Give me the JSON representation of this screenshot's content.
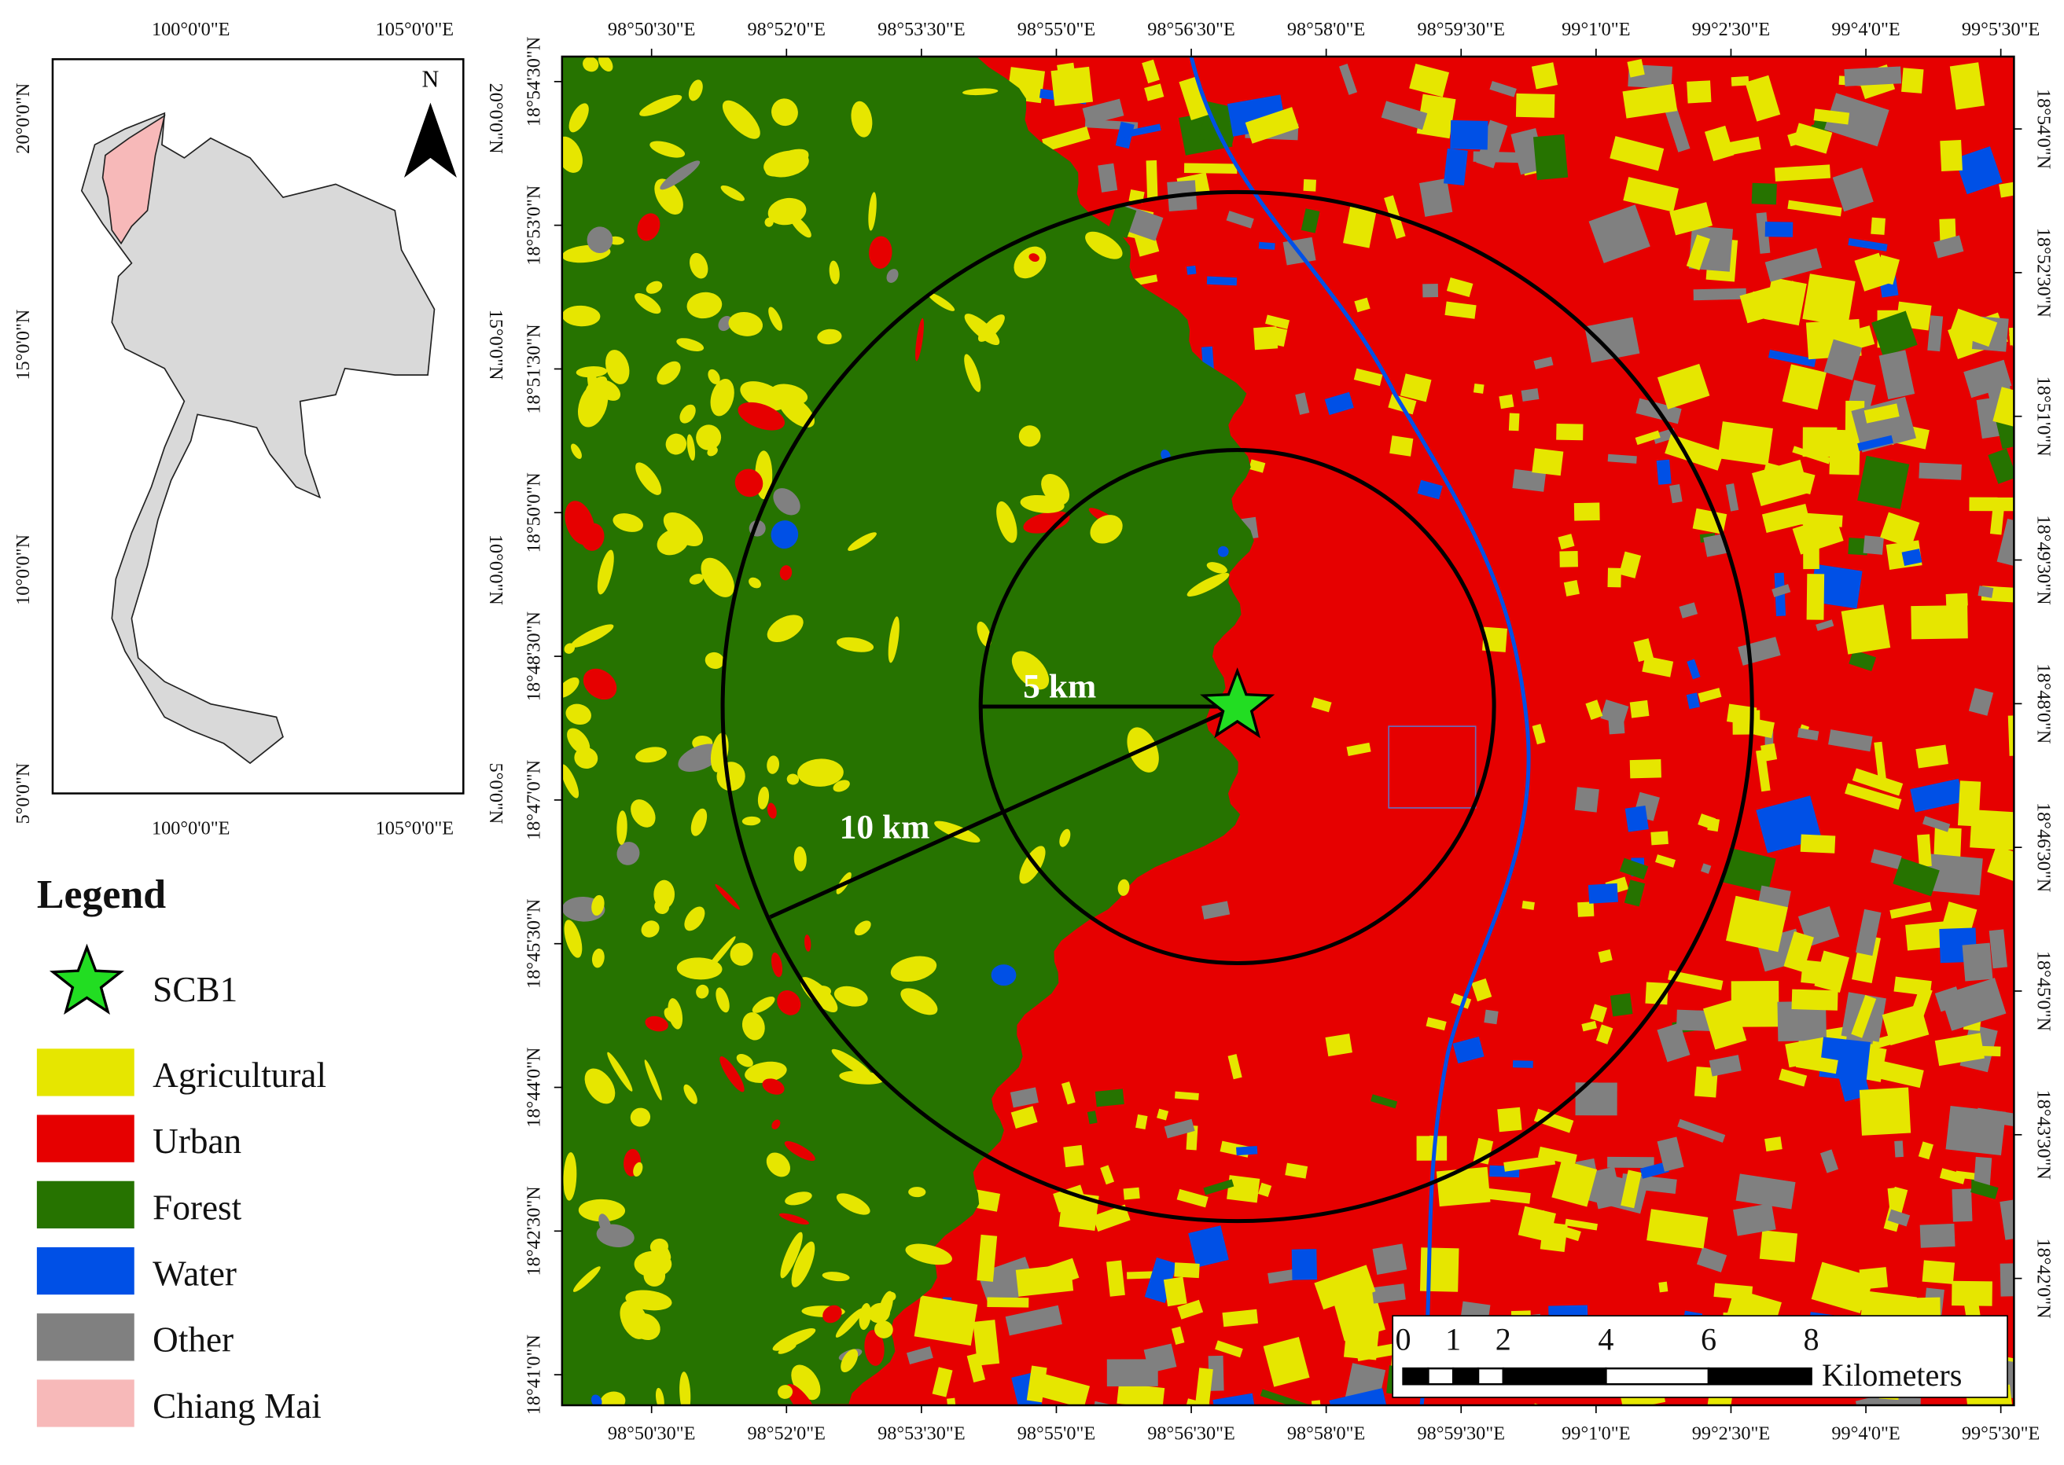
{
  "inset": {
    "top_labels": [
      "100°0'0\"E",
      "105°0'0\"E"
    ],
    "bottom_labels": [
      "100°0'0\"E",
      "105°0'0\"E"
    ],
    "left_labels": [
      "20°0'0\"N",
      "15°0'0\"N",
      "10°0'0\"N",
      "5°0'0\"N"
    ],
    "right_labels": [
      "20°0'0\"N",
      "15°0'0\"N",
      "10°0'0\"N",
      "5°0'0\"N"
    ],
    "north": "N"
  },
  "main": {
    "top_labels": [
      "98°50'30\"E",
      "98°52'0\"E",
      "98°53'30\"E",
      "98°55'0\"E",
      "98°56'30\"E",
      "98°58'0\"E",
      "98°59'30\"E",
      "99°1'0\"E",
      "99°2'30\"E",
      "99°4'0\"E",
      "99°5'30\"E"
    ],
    "bottom_labels": [
      "98°50'30\"E",
      "98°52'0\"E",
      "98°53'30\"E",
      "98°55'0\"E",
      "98°56'30\"E",
      "98°58'0\"E",
      "98°59'30\"E",
      "99°1'0\"E",
      "99°2'30\"E",
      "99°4'0\"E",
      "99°5'30\"E"
    ],
    "left_labels": [
      "18°54'30\"N",
      "18°53'0\"N",
      "18°51'30\"N",
      "18°50'0\"N",
      "18°48'30\"N",
      "18°47'0\"N",
      "18°45'30\"N",
      "18°44'0\"N",
      "18°42'30\"N",
      "18°41'0\"N"
    ],
    "right_labels": [
      "18°54'0\"N",
      "18°52'30\"N",
      "18°51'0\"N",
      "18°49'30\"N",
      "18°48'0\"N",
      "18°46'30\"N",
      "18°45'0\"N",
      "18°43'30\"N",
      "18°42'0\"N"
    ],
    "inner_radius_label": "5 km",
    "outer_radius_label": "10 km"
  },
  "scale_bar": {
    "ticks": [
      "0",
      "1",
      "2",
      "4",
      "6",
      "8"
    ],
    "unit": "Kilometers"
  },
  "legend": {
    "title": "Legend",
    "site": {
      "label": "SCB1",
      "color": "#22dd22"
    },
    "items": [
      {
        "label": "Agricultural",
        "color": "#e6e600"
      },
      {
        "label": "Urban",
        "color": "#e60000"
      },
      {
        "label": "Forest",
        "color": "#267300"
      },
      {
        "label": "Water",
        "color": "#0050e6"
      },
      {
        "label": "Other",
        "color": "#808080"
      },
      {
        "label": "Chiang Mai",
        "color": "#f7b9b9"
      }
    ]
  }
}
